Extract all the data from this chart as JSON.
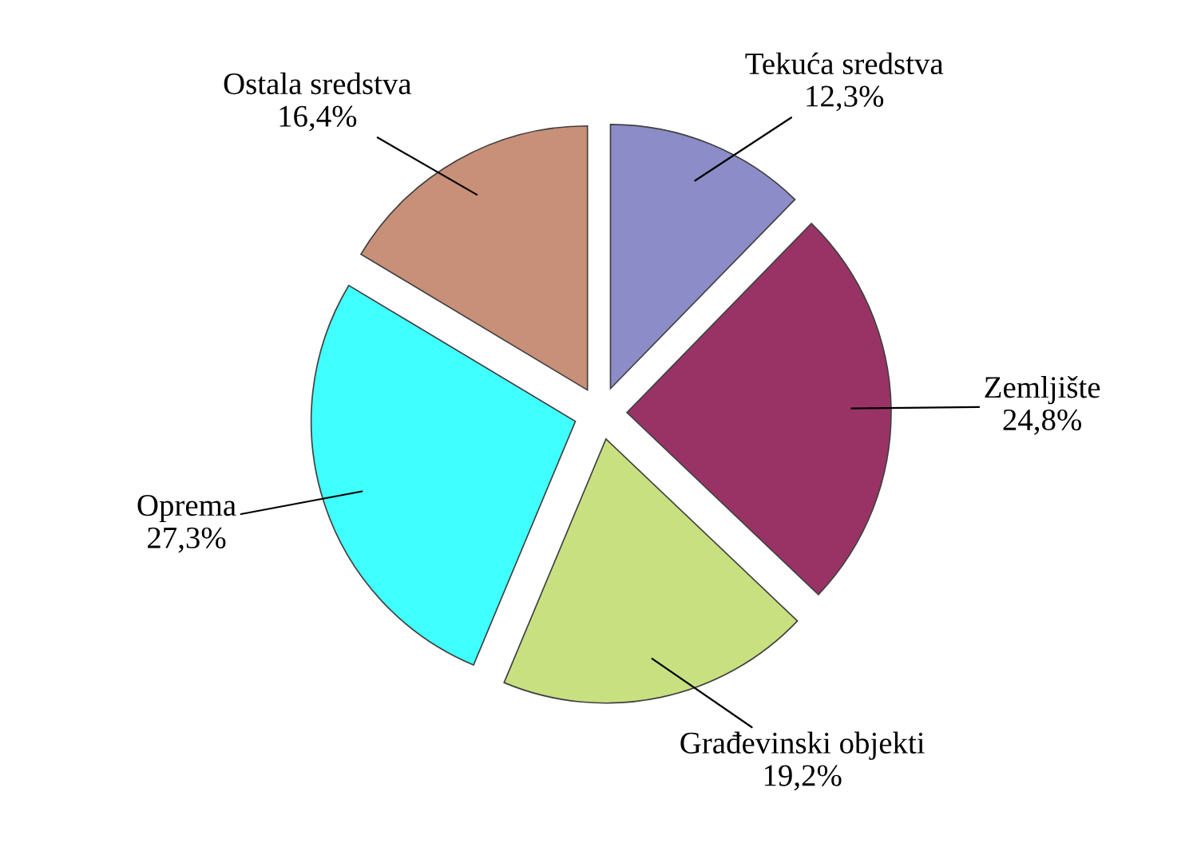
{
  "chart_data": {
    "type": "pie",
    "categories": [
      "Tekuća sredstva",
      "Zemljište",
      "Građevinski objekti",
      "Oprema",
      "Ostala sredstva"
    ],
    "values": [
      12.3,
      24.8,
      19.2,
      27.3,
      16.4
    ],
    "value_labels": [
      "12,3%",
      "24,8%",
      "19,2%",
      "27,3%",
      "16,4%"
    ],
    "colors": [
      "#8c8cc8",
      "#993366",
      "#c8e080",
      "#40ffff",
      "#c89078"
    ],
    "legend": false
  }
}
